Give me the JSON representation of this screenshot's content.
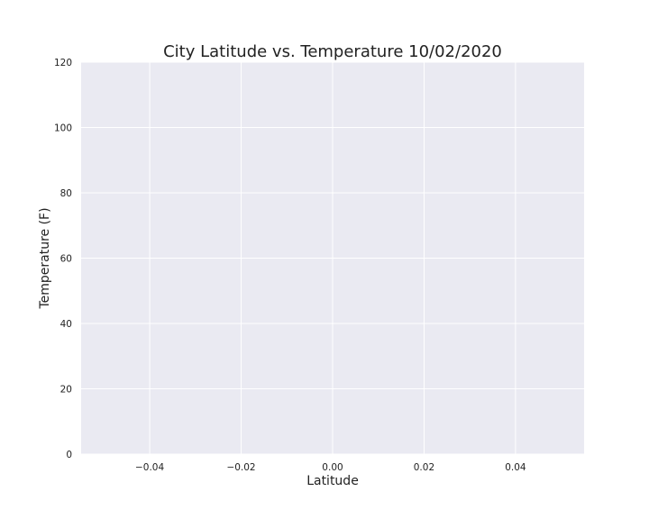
{
  "chart_data": {
    "type": "scatter",
    "title": "City Latitude vs. Temperature 10/02/2020",
    "xlabel": "Latitude",
    "ylabel": "Temperature (F)",
    "xlim": [
      -0.055,
      0.055
    ],
    "ylim": [
      0,
      120
    ],
    "xticks": [
      -0.04,
      -0.02,
      0.0,
      0.02,
      0.04
    ],
    "xtick_labels": [
      "−0.04",
      "−0.02",
      "0.00",
      "0.02",
      "0.04"
    ],
    "yticks": [
      0,
      20,
      40,
      60,
      80,
      100,
      120
    ],
    "ytick_labels": [
      "0",
      "20",
      "40",
      "60",
      "80",
      "100",
      "120"
    ],
    "grid": true,
    "series": [
      {
        "x": [],
        "y": []
      }
    ],
    "colors": {
      "plot_background": "#eaeaf2",
      "grid": "#ffffff",
      "text": "#222222"
    }
  }
}
